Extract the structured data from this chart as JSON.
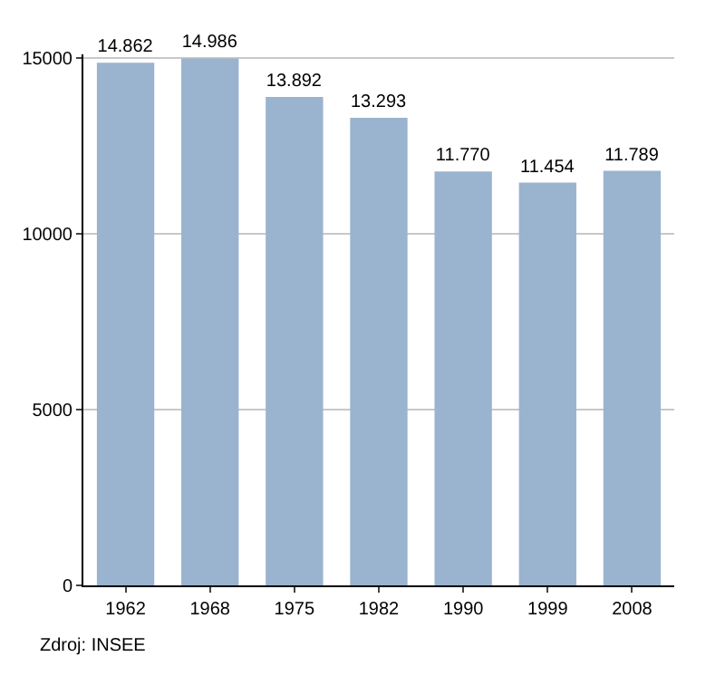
{
  "chart_data": {
    "type": "bar",
    "categories": [
      "1962",
      "1968",
      "1975",
      "1982",
      "1990",
      "1999",
      "2008"
    ],
    "values": [
      14862,
      14986,
      13892,
      13293,
      11770,
      11454,
      11789
    ],
    "value_labels": [
      "14.862",
      "14.986",
      "13.892",
      "13.293",
      "11.770",
      "11.454",
      "11.789"
    ],
    "color": "#9ab3ce",
    "ylim": [
      0,
      15100
    ],
    "yticks": [
      0,
      5000,
      10000,
      15000
    ],
    "grid": "y",
    "annotations": [
      "Zdroj: INSEE"
    ]
  }
}
